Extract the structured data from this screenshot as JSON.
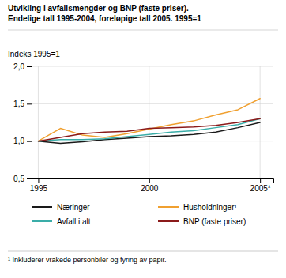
{
  "chart_data": {
    "type": "line",
    "title": "Utvikling i avfallsmengder og BNP (faste priser).",
    "subtitle": "Endelige tall 1995-2004, foreløpige tall 2005. 1995=1",
    "ylabel": "Indeks 1995=1",
    "annotations": [
      "¹ Inkluderer vrakede personbiler og fyring av papir."
    ],
    "x": [
      1995,
      1996,
      1997,
      1998,
      1999,
      2000,
      2001,
      2002,
      2003,
      2004,
      2005
    ],
    "series": [
      {
        "name": "Næringer",
        "color": "#1a1a1a",
        "values": [
          1.0,
          0.97,
          0.99,
          1.02,
          1.04,
          1.06,
          1.07,
          1.09,
          1.12,
          1.18,
          1.25
        ]
      },
      {
        "name": "Husholdninger¹",
        "color": "#f0a030",
        "values": [
          1.0,
          1.17,
          1.08,
          1.05,
          1.1,
          1.16,
          1.22,
          1.27,
          1.35,
          1.42,
          1.57
        ]
      },
      {
        "name": "Avfall i alt",
        "color": "#3aada8",
        "values": [
          1.0,
          1.02,
          1.02,
          1.03,
          1.06,
          1.09,
          1.12,
          1.14,
          1.18,
          1.22,
          1.3
        ]
      },
      {
        "name": "BNP (faste priser)",
        "color": "#8b1a1a",
        "values": [
          1.0,
          1.05,
          1.1,
          1.12,
          1.13,
          1.17,
          1.18,
          1.19,
          1.21,
          1.25,
          1.3
        ]
      }
    ],
    "xlim": [
      1994.7,
      2005.6
    ],
    "xticks": [
      1995,
      2000,
      {
        "value": 2005,
        "label": "2005*"
      }
    ],
    "ylim": [
      0.5,
      2.0
    ],
    "yticks": [
      {
        "value": 0.5,
        "label": "0,5"
      },
      {
        "value": 1.0,
        "label": "1,0"
      },
      {
        "value": 1.5,
        "label": "1,5"
      },
      {
        "value": 2.0,
        "label": "2,0"
      }
    ],
    "grid": true,
    "legend": "bottom"
  }
}
